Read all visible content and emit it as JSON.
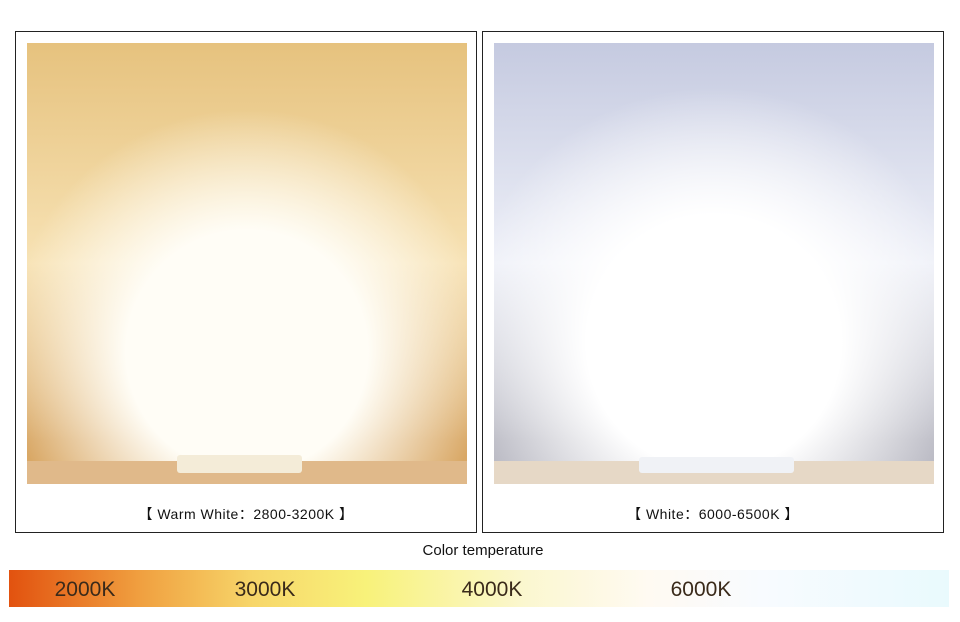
{
  "panels": [
    {
      "caption": "【 Warm White：2800-3200K 】"
    },
    {
      "caption": "【 White：6000-6500K 】"
    }
  ],
  "scale": {
    "title": "Color temperature",
    "labels": [
      "2000K",
      "3000K",
      "4000K",
      "6000K"
    ]
  }
}
